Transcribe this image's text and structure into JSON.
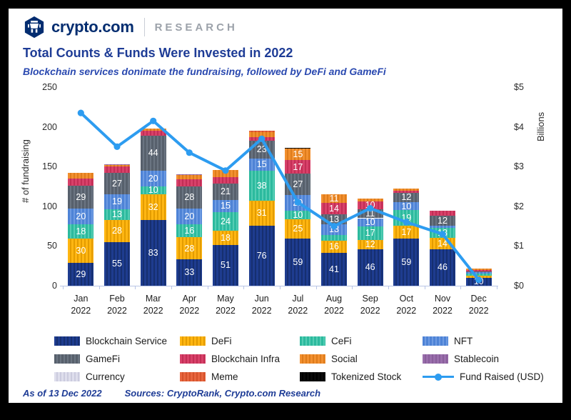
{
  "header": {
    "brand": "crypto.com",
    "division": "RESEARCH"
  },
  "title": "Total Counts & Funds Were Invested in 2022",
  "subtitle": "Blockchain services donimate the fundraising, followed by DeFi and GameFi",
  "footer": {
    "as_of": "As of 13 Dec 2022",
    "sources": "Sources: CryptoRank, Crypto.com Research"
  },
  "chart_data": {
    "type": "bar",
    "stacked": true,
    "categories": [
      "Jan",
      "Feb",
      "Mar",
      "Apr",
      "May",
      "Jun",
      "Jul",
      "Aug",
      "Sep",
      "Oct",
      "Nov",
      "Dec"
    ],
    "category_year": "2022",
    "left_axis": {
      "label": "# of fundraising",
      "ticks": [
        "250",
        "200",
        "150",
        "100",
        "50",
        "0"
      ],
      "min": 0,
      "max": 250
    },
    "right_axis": {
      "label": "Billions",
      "ticks": [
        "$5",
        "$4",
        "$3",
        "$2",
        "$1",
        "$0"
      ],
      "min": 0,
      "max": 5
    },
    "label_threshold": 10,
    "series": [
      {
        "name": "Blockchain Service",
        "color": "#1E3C8F",
        "stripe": "#162F70",
        "values": [
          29,
          55,
          83,
          33,
          51,
          76,
          59,
          41,
          46,
          59,
          46,
          10
        ]
      },
      {
        "name": "DeFi",
        "color": "#FFB612",
        "stripe": "#E39C00",
        "values": [
          30,
          28,
          32,
          28,
          18,
          31,
          25,
          16,
          12,
          17,
          14,
          3
        ]
      },
      {
        "name": "CeFi",
        "color": "#2CBA9E",
        "stripe": "#55CDB4",
        "values": [
          18,
          13,
          10,
          16,
          24,
          38,
          10,
          7,
          17,
          19,
          13,
          2
        ]
      },
      {
        "name": "NFT",
        "color": "#4E83D6",
        "stripe": "#6E9BE2",
        "values": [
          20,
          19,
          20,
          20,
          15,
          15,
          20,
          13,
          10,
          10,
          3,
          2
        ]
      },
      {
        "name": "GameFi",
        "color": "#57606C",
        "stripe": "#6B7582",
        "values": [
          29,
          27,
          44,
          28,
          21,
          23,
          27,
          13,
          11,
          12,
          12,
          1
        ]
      },
      {
        "name": "Blockchain Infra",
        "color": "#D8416A",
        "stripe": "#C22E55",
        "values": [
          9,
          8,
          6,
          9,
          8,
          4,
          17,
          14,
          10,
          3,
          6,
          2
        ]
      },
      {
        "name": "Social",
        "color": "#F29030",
        "stripe": "#DE7C1B",
        "values": [
          7,
          2,
          3,
          5,
          9,
          6,
          15,
          11,
          4,
          2,
          0,
          2
        ]
      },
      {
        "name": "Stablecoin",
        "color": "#9A6FAC",
        "stripe": "#8A5F9C",
        "values": [
          0,
          1,
          0,
          1,
          0,
          0,
          0,
          0,
          0,
          0,
          0,
          0
        ]
      },
      {
        "name": "Currency",
        "color": "#DEDEEC",
        "stripe": "#CBCBDE",
        "values": [
          0,
          0,
          0,
          0,
          0,
          0,
          0,
          0,
          0,
          0,
          0,
          0
        ]
      },
      {
        "name": "Meme",
        "color": "#E7663F",
        "stripe": "#D5522B",
        "values": [
          0,
          0,
          0,
          0,
          0,
          2,
          0,
          0,
          0,
          0,
          0,
          0
        ]
      },
      {
        "name": "Tokenized Stock",
        "color": "#0A0A0A",
        "stripe": "#000000",
        "values": [
          0,
          0,
          0,
          0,
          0,
          0,
          1,
          0,
          0,
          0,
          0,
          0
        ]
      }
    ],
    "line": {
      "name": "Fund Raised (USD)",
      "color": "#2D9CF0",
      "values": [
        4.35,
        3.5,
        4.15,
        3.35,
        2.9,
        3.7,
        2.1,
        1.5,
        1.95,
        1.6,
        1.3,
        0.15
      ]
    }
  }
}
